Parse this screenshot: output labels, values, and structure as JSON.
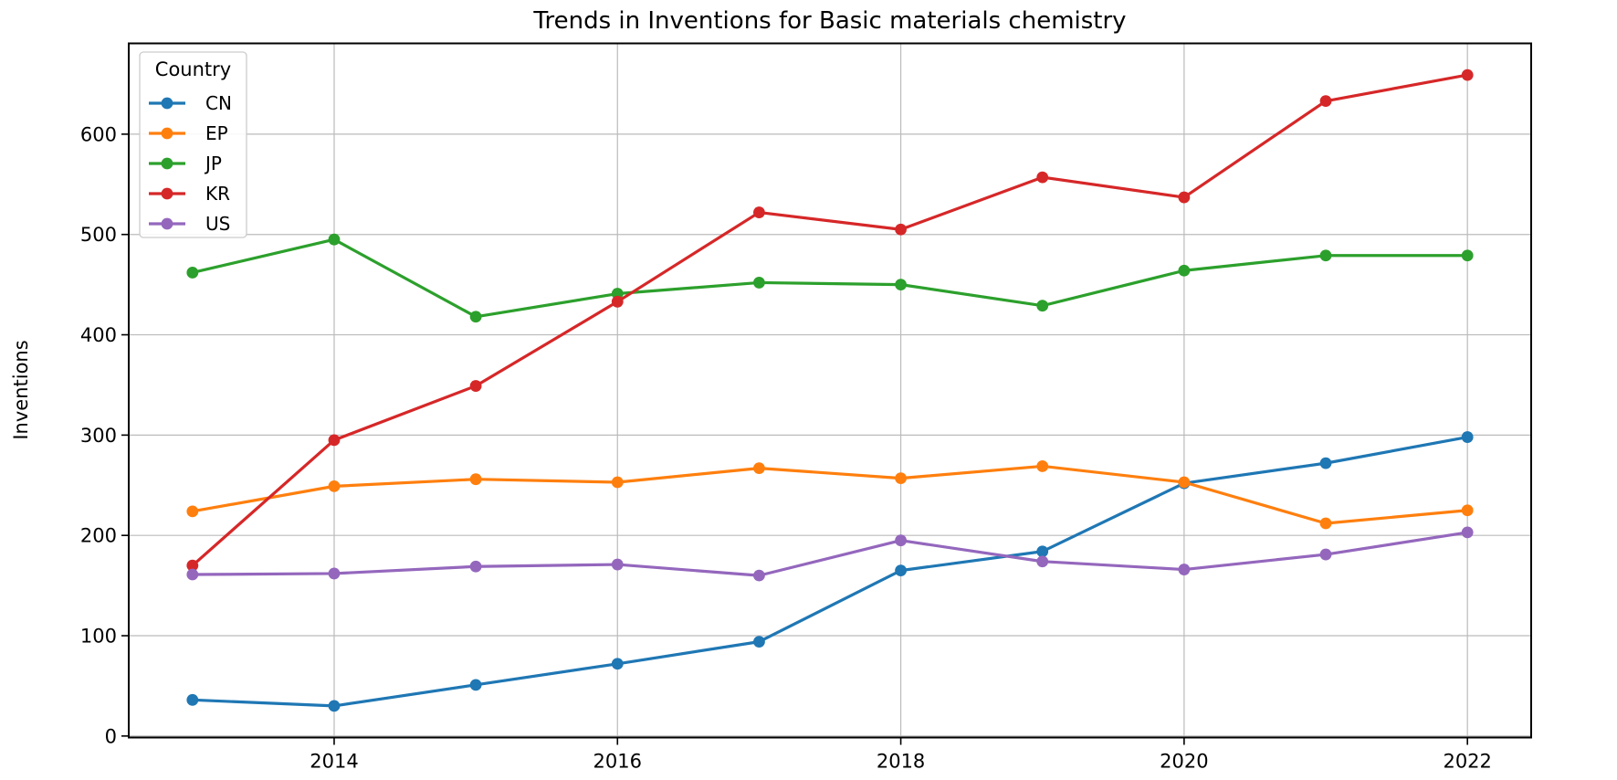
{
  "figure": {
    "title": "Trends in Inventions for Basic materials chemistry",
    "ylabel": "Inventions",
    "legend_title": "Country"
  },
  "chart_data": {
    "type": "line",
    "title": "Trends in Inventions for Basic materials chemistry",
    "xlabel": "",
    "ylabel": "Inventions",
    "legend_title": "Country",
    "legend_position": "upper left",
    "grid": true,
    "x": [
      2013,
      2014,
      2015,
      2016,
      2017,
      2018,
      2019,
      2020,
      2021,
      2022
    ],
    "series": [
      {
        "name": "CN",
        "color": "#1f77b4",
        "values": [
          36,
          30,
          51,
          72,
          94,
          165,
          184,
          252,
          272,
          298
        ]
      },
      {
        "name": "EP",
        "color": "#ff7f0e",
        "values": [
          224,
          249,
          256,
          253,
          267,
          257,
          269,
          253,
          212,
          225
        ]
      },
      {
        "name": "JP",
        "color": "#2ca02c",
        "values": [
          462,
          495,
          418,
          441,
          452,
          450,
          429,
          464,
          479,
          479
        ]
      },
      {
        "name": "KR",
        "color": "#d62728",
        "values": [
          170,
          295,
          349,
          433,
          522,
          505,
          557,
          537,
          633,
          659
        ]
      },
      {
        "name": "US",
        "color": "#9467bd",
        "values": [
          161,
          162,
          169,
          171,
          160,
          195,
          174,
          166,
          181,
          203
        ]
      }
    ],
    "xticks": [
      2014,
      2016,
      2018,
      2020,
      2022
    ],
    "yticks": [
      0,
      100,
      200,
      300,
      400,
      500,
      600
    ],
    "xlim": [
      2012.55,
      2022.45
    ],
    "ylim": [
      -1.5,
      690.5
    ],
    "axis_style": {
      "grid_color": "#bbbbbb",
      "spine_color": "#000000",
      "text_color": "#000000",
      "background": "#ffffff"
    }
  }
}
